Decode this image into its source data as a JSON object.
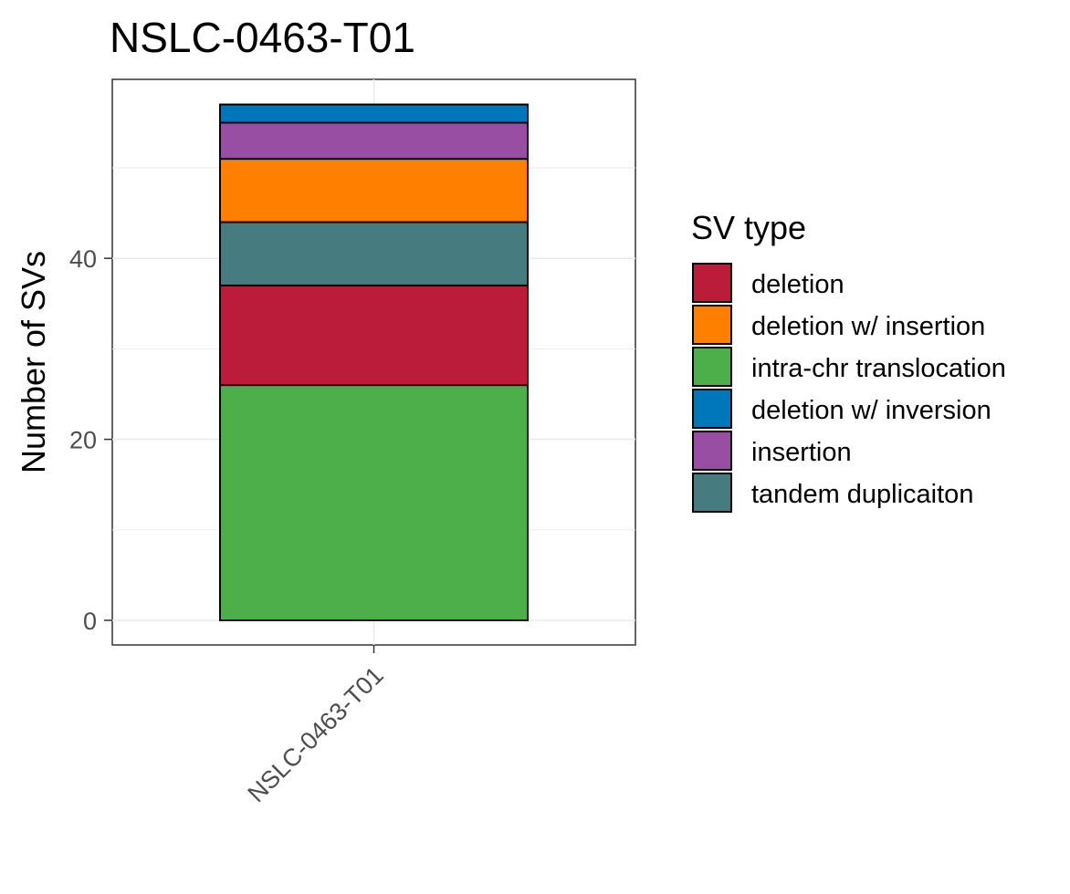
{
  "chart_data": {
    "type": "bar",
    "stacked": true,
    "title": "NSLC-0463-T01",
    "xlabel": "",
    "ylabel": "Number of SVs",
    "categories": [
      "NSLC-0463-T01"
    ],
    "ylim": [
      0,
      60
    ],
    "yticks": [
      0,
      20,
      40
    ],
    "grid": true,
    "legend_position": "right",
    "legend_title": "SV type",
    "series": [
      {
        "name": "deletion",
        "values": [
          11
        ],
        "color": "#BB1C3A"
      },
      {
        "name": "deletion w/ insertion",
        "values": [
          7
        ],
        "color": "#FF7F00"
      },
      {
        "name": "intra-chr translocation",
        "values": [
          26
        ],
        "color": "#4DAF4A"
      },
      {
        "name": "deletion w/ inversion",
        "values": [
          2
        ],
        "color": "#0077BB"
      },
      {
        "name": "insertion",
        "values": [
          4
        ],
        "color": "#984EA3"
      },
      {
        "name": "tandem duplicaiton",
        "values": [
          7
        ],
        "color": "#467C80"
      }
    ],
    "stack_order_bottom_to_top": [
      "intra-chr translocation",
      "deletion",
      "tandem duplicaiton",
      "deletion w/ insertion",
      "insertion",
      "deletion w/ inversion"
    ]
  }
}
